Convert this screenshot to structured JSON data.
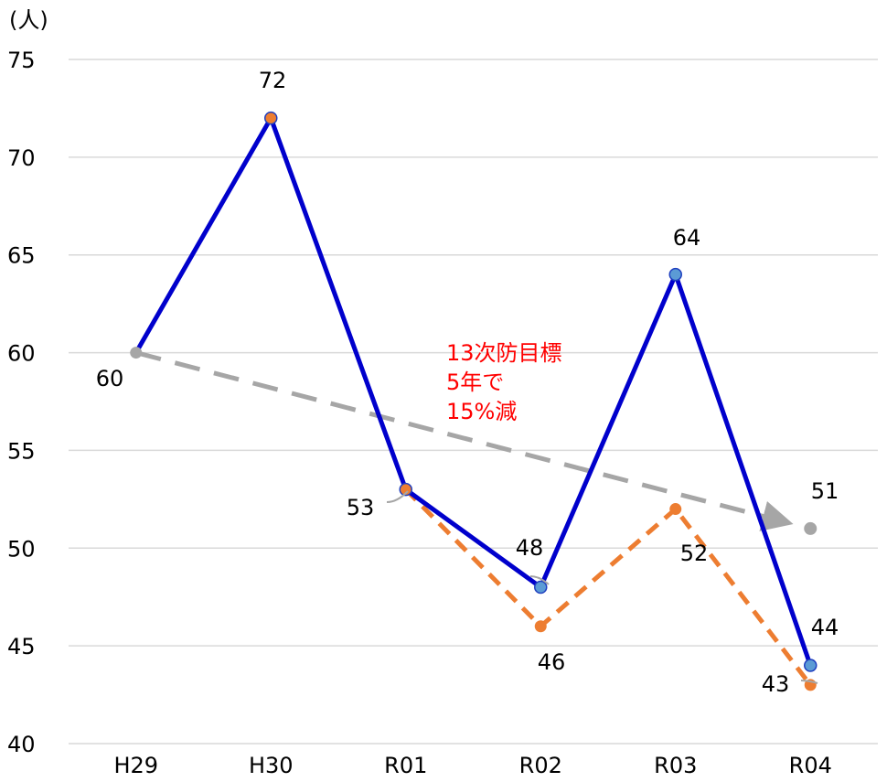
{
  "chart_data": {
    "type": "line",
    "unit_label": "(人)",
    "categories": [
      "H29",
      "H30",
      "R01",
      "R02",
      "R03",
      "R04"
    ],
    "ylim": [
      40,
      75
    ],
    "yticks": [
      40,
      45,
      50,
      55,
      60,
      65,
      70,
      75
    ],
    "grid": true,
    "series": [
      {
        "key": "actual",
        "values": [
          60,
          72,
          53,
          48,
          64,
          44
        ],
        "color": "#0000cc",
        "style": "solid",
        "marker_colors": [
          "#a6a6a6",
          "#ed7d31",
          "#ed7d31",
          "#5b9bd5",
          "#5b9bd5",
          "#5b9bd5"
        ]
      },
      {
        "key": "orange",
        "points": [
          [
            "R01",
            53
          ],
          [
            "R02",
            46
          ],
          [
            "R03",
            52
          ],
          [
            "R04",
            43
          ]
        ],
        "color": "#ed7d31",
        "style": "dashed"
      },
      {
        "key": "target",
        "points": [
          [
            "H29",
            60
          ],
          [
            "R04",
            51
          ]
        ],
        "color": "#a6a6a6",
        "style": "dashed-arrow"
      }
    ],
    "data_labels": [
      "60",
      "72",
      "53",
      "48",
      "64",
      "44",
      "46",
      "52",
      "43",
      "51"
    ],
    "annotation": {
      "lines": [
        "13次防目標",
        "5年で",
        "15%減"
      ],
      "color": "#ff0000"
    }
  }
}
